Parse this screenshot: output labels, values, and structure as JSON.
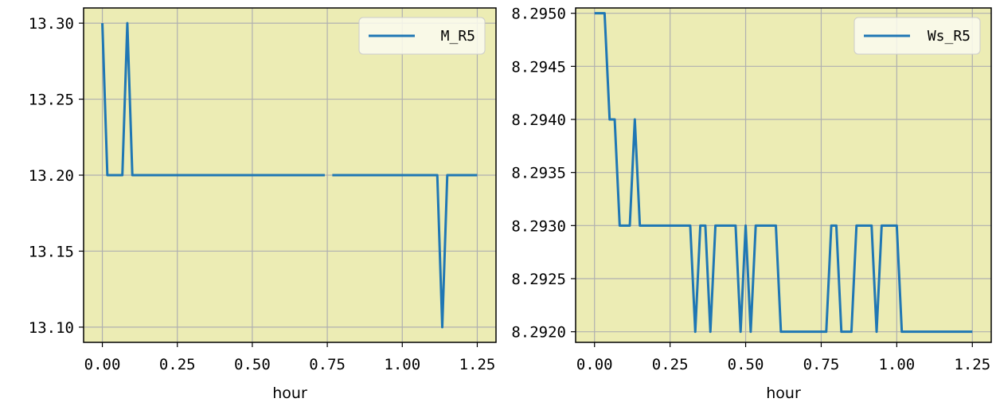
{
  "chart_data": [
    {
      "type": "line",
      "title": "",
      "xlabel": "hour",
      "ylabel": "",
      "xlim": [
        -0.0625,
        1.3125
      ],
      "ylim": [
        13.09,
        13.31
      ],
      "xticks": [
        0.0,
        0.25,
        0.5,
        0.75,
        1.0,
        1.25
      ],
      "xtick_labels": [
        "0.00",
        "0.25",
        "0.50",
        "0.75",
        "1.00",
        "1.25"
      ],
      "yticks": [
        13.1,
        13.15,
        13.2,
        13.25,
        13.3
      ],
      "ytick_labels": [
        "13.10",
        "13.15",
        "13.20",
        "13.25",
        "13.30"
      ],
      "grid": true,
      "legend_position": "top-right",
      "background_color": "#ececb4",
      "series": [
        {
          "name": "M_R5",
          "color": "#1f77b4",
          "segments": [
            [
              [
                0.0,
                13.3
              ],
              [
                0.0167,
                13.2
              ],
              [
                0.0333,
                13.2
              ],
              [
                0.05,
                13.2
              ],
              [
                0.0667,
                13.2
              ],
              [
                0.0833,
                13.3
              ],
              [
                0.1,
                13.2
              ],
              [
                0.25,
                13.2
              ],
              [
                0.5,
                13.2
              ],
              [
                0.7417,
                13.2
              ]
            ],
            [
              [
                0.7667,
                13.2
              ],
              [
                1.0,
                13.2
              ],
              [
                1.1167,
                13.2
              ],
              [
                1.1333,
                13.1
              ],
              [
                1.15,
                13.2
              ],
              [
                1.2,
                13.2
              ],
              [
                1.25,
                13.2
              ]
            ]
          ]
        }
      ]
    },
    {
      "type": "line",
      "title": "",
      "xlabel": "hour",
      "ylabel": "",
      "xlim": [
        -0.0625,
        1.3125
      ],
      "ylim": [
        8.2919,
        8.29505
      ],
      "xticks": [
        0.0,
        0.25,
        0.5,
        0.75,
        1.0,
        1.25
      ],
      "xtick_labels": [
        "0.00",
        "0.25",
        "0.50",
        "0.75",
        "1.00",
        "1.25"
      ],
      "yticks": [
        8.292,
        8.2925,
        8.293,
        8.2935,
        8.294,
        8.2945,
        8.295
      ],
      "ytick_labels": [
        "8.2920",
        "8.2925",
        "8.2930",
        "8.2935",
        "8.2940",
        "8.2945",
        "8.2950"
      ],
      "grid": true,
      "legend_position": "top-right",
      "background_color": "#ececb4",
      "series": [
        {
          "name": "Ws_R5",
          "color": "#1f77b4",
          "segments": [
            [
              [
                0.0,
                8.295
              ],
              [
                0.0167,
                8.295
              ],
              [
                0.0333,
                8.295
              ],
              [
                0.05,
                8.294
              ],
              [
                0.0667,
                8.294
              ],
              [
                0.0833,
                8.293
              ],
              [
                0.1,
                8.293
              ],
              [
                0.1167,
                8.293
              ],
              [
                0.1333,
                8.294
              ],
              [
                0.15,
                8.293
              ],
              [
                0.2,
                8.293
              ],
              [
                0.25,
                8.293
              ],
              [
                0.3167,
                8.293
              ],
              [
                0.3333,
                8.292
              ],
              [
                0.35,
                8.293
              ],
              [
                0.3667,
                8.293
              ],
              [
                0.3833,
                8.292
              ],
              [
                0.4,
                8.293
              ],
              [
                0.45,
                8.293
              ],
              [
                0.4667,
                8.293
              ],
              [
                0.4833,
                8.292
              ],
              [
                0.5,
                8.293
              ],
              [
                0.5167,
                8.292
              ],
              [
                0.5333,
                8.293
              ],
              [
                0.55,
                8.293
              ],
              [
                0.6,
                8.293
              ],
              [
                0.6167,
                8.292
              ],
              [
                0.7,
                8.292
              ],
              [
                0.7667,
                8.292
              ],
              [
                0.7833,
                8.293
              ],
              [
                0.8,
                8.293
              ],
              [
                0.8167,
                8.292
              ],
              [
                0.85,
                8.292
              ],
              [
                0.8667,
                8.293
              ],
              [
                0.9167,
                8.293
              ],
              [
                0.9333,
                8.292
              ],
              [
                0.95,
                8.293
              ],
              [
                1.0,
                8.293
              ],
              [
                1.0167,
                8.292
              ],
              [
                1.1,
                8.292
              ],
              [
                1.25,
                8.292
              ]
            ]
          ]
        }
      ]
    }
  ]
}
